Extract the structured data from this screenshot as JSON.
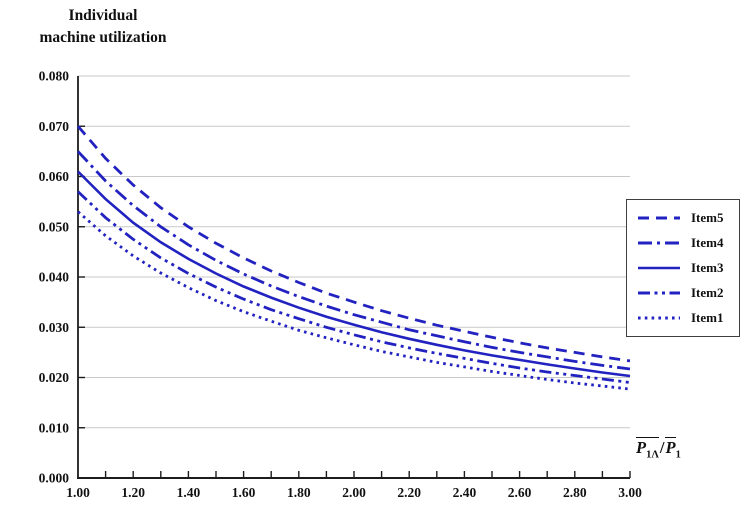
{
  "title": {
    "line1": "Individual",
    "line2": "machine utilization"
  },
  "axis_formula": {
    "numerator_base": "P",
    "numerator_sub": "1Λ",
    "slash": "/",
    "denominator_base": "P",
    "denominator_sub": "1"
  },
  "colors": {
    "line_blue": "#2222c0",
    "gridline": "#c9c9c9",
    "axis": "#1c1c1c",
    "text": "#111111",
    "legend_border": "#3f3f3f"
  },
  "chart_data": {
    "type": "line",
    "title": "Individual machine utilization",
    "xlabel": "P̄_1Λ / P̄_1",
    "ylabel": "Individual machine utilization",
    "xlim": [
      1.0,
      3.0
    ],
    "ylim": [
      0.0,
      0.08
    ],
    "grid": "horizontal",
    "legend_position": "right",
    "x_minor_tick_step": 0.1,
    "x_tick_labels": [
      "1.00",
      "1.20",
      "1.40",
      "1.60",
      "1.80",
      "2.00",
      "2.20",
      "2.40",
      "2.60",
      "2.80",
      "3.00"
    ],
    "x_tick_values": [
      1.0,
      1.2,
      1.4,
      1.6,
      1.8,
      2.0,
      2.2,
      2.4,
      2.6,
      2.8,
      3.0
    ],
    "y_tick_labels": [
      "0.000",
      "0.010",
      "0.020",
      "0.030",
      "0.040",
      "0.050",
      "0.060",
      "0.070",
      "0.080"
    ],
    "y_tick_values": [
      0.0,
      0.01,
      0.02,
      0.03,
      0.04,
      0.05,
      0.06,
      0.07,
      0.08
    ],
    "x": [
      1.0,
      1.1,
      1.2,
      1.3,
      1.4,
      1.5,
      1.6,
      1.7,
      1.8,
      1.9,
      2.0,
      2.1,
      2.2,
      2.3,
      2.4,
      2.5,
      2.6,
      2.7,
      2.8,
      2.9,
      3.0
    ],
    "series": [
      {
        "name": "Item5",
        "style": "dashed",
        "values": [
          0.07,
          0.0636,
          0.0583,
          0.0538,
          0.05,
          0.0467,
          0.0438,
          0.0412,
          0.0389,
          0.0368,
          0.035,
          0.0333,
          0.0318,
          0.0304,
          0.0292,
          0.028,
          0.0269,
          0.0259,
          0.025,
          0.0241,
          0.0233
        ]
      },
      {
        "name": "Item4",
        "style": "dash-dot",
        "values": [
          0.065,
          0.0591,
          0.0542,
          0.05,
          0.0464,
          0.0433,
          0.0406,
          0.0382,
          0.0361,
          0.0342,
          0.0325,
          0.031,
          0.0295,
          0.0283,
          0.0271,
          0.026,
          0.025,
          0.0241,
          0.0232,
          0.0224,
          0.0217
        ]
      },
      {
        "name": "Item3",
        "style": "solid",
        "values": [
          0.061,
          0.0555,
          0.0508,
          0.0469,
          0.0436,
          0.0407,
          0.0381,
          0.0359,
          0.0339,
          0.0321,
          0.0305,
          0.029,
          0.0277,
          0.0265,
          0.0254,
          0.0244,
          0.0235,
          0.0226,
          0.0218,
          0.021,
          0.0203
        ]
      },
      {
        "name": "Item2",
        "style": "dash-dot-dot",
        "values": [
          0.057,
          0.0518,
          0.0475,
          0.0438,
          0.0407,
          0.038,
          0.0356,
          0.0335,
          0.0317,
          0.03,
          0.0285,
          0.0271,
          0.0259,
          0.0248,
          0.0238,
          0.0228,
          0.0219,
          0.0211,
          0.0204,
          0.0197,
          0.019
        ]
      },
      {
        "name": "Item1",
        "style": "dotted",
        "values": [
          0.053,
          0.0482,
          0.0442,
          0.0408,
          0.0379,
          0.0353,
          0.0331,
          0.0312,
          0.0294,
          0.0279,
          0.0265,
          0.0252,
          0.0241,
          0.023,
          0.0221,
          0.0212,
          0.0204,
          0.0196,
          0.0189,
          0.0183,
          0.0177
        ]
      }
    ]
  }
}
